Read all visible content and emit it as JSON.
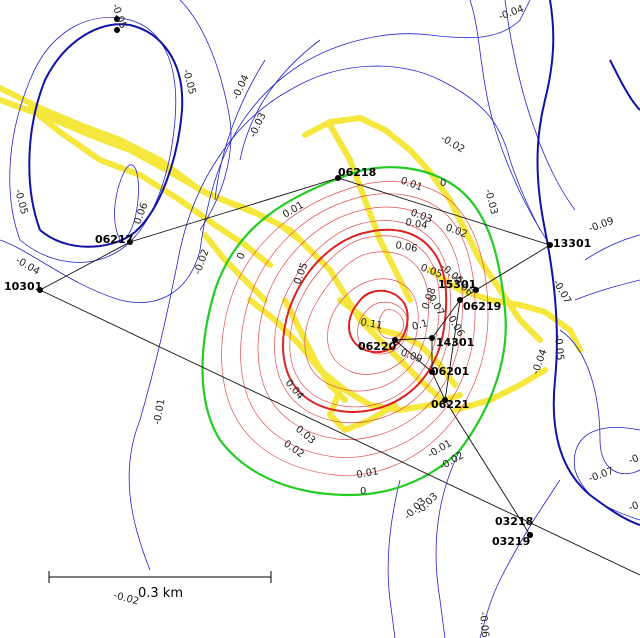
{
  "scale_bar": {
    "label": "0.3 km"
  },
  "stations": [
    {
      "id": "06218"
    },
    {
      "id": "06217"
    },
    {
      "id": "10301"
    },
    {
      "id": "13301"
    },
    {
      "id": "15301"
    },
    {
      "id": "06219"
    },
    {
      "id": "06220"
    },
    {
      "id": "14301"
    },
    {
      "id": "06201"
    },
    {
      "id": "06221"
    },
    {
      "id": "03218"
    },
    {
      "id": "03219"
    }
  ],
  "contour_labels": [
    "-0.05",
    "-0.04",
    "-0.05",
    "-0.04",
    "-0.03",
    "-0.02",
    "-0.03",
    "0.06",
    "-0.05",
    "-0.04",
    "-0.02",
    "-0.01",
    "-0.02",
    "-0.03",
    "0.01",
    "0",
    "0.03",
    "0.04",
    "0.02",
    "0.06",
    "0.01",
    "0",
    "0.05",
    "-0.05",
    "-0.06",
    "0.07",
    "-0.09",
    "-0.07",
    "0.08",
    "0.06",
    "0.11",
    "0.1",
    "0.09",
    "-0.05",
    "-0.04",
    "0.04",
    "0.03",
    "0.02",
    "0.01",
    "0",
    "-0.01",
    "-0.02",
    "-0.03",
    "-0.07",
    "-0.06",
    "-0.02",
    "0.05",
    "-0.01"
  ],
  "colors": {
    "negative_contour": "#2222cc",
    "zero_contour": "#22cc22",
    "positive_contour": "#dd2222",
    "survey_track": "#f5e52a"
  }
}
